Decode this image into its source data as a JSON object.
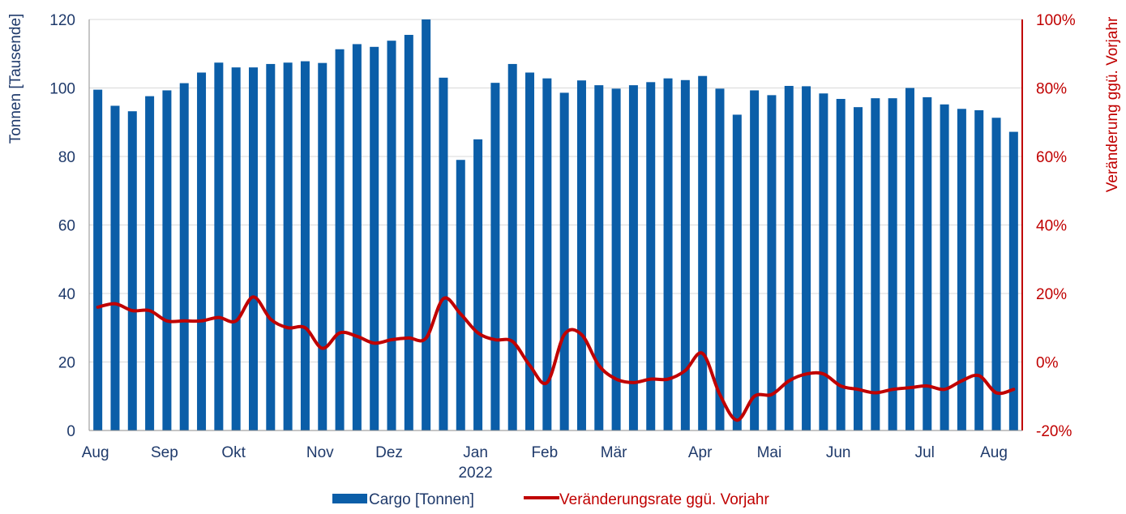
{
  "chart_data": {
    "type": "bar",
    "x_axis": {
      "month_labels": [
        "Aug",
        "Sep",
        "Okt",
        "Nov",
        "Dez",
        "Jan",
        "Feb",
        "Mär",
        "Apr",
        "Mai",
        "Jun",
        "Jul",
        "Aug"
      ],
      "year_label": "2022"
    },
    "y_left": {
      "label": "Tonnen [Tausende]",
      "ylim": [
        0,
        120
      ],
      "ticks": [
        "0",
        "20",
        "40",
        "60",
        "80",
        "100",
        "120"
      ]
    },
    "y_right": {
      "label": "Veränderung ggü. Vorjahr",
      "ylim": [
        -20,
        100
      ],
      "ticks": [
        "-20%",
        "0%",
        "20%",
        "40%",
        "60%",
        "80%",
        "100%"
      ]
    },
    "series": [
      {
        "name": "Cargo [Tonnen]",
        "kind": "bar",
        "color": "#0b5ea8",
        "values": [
          99.5,
          94.8,
          93.2,
          97.6,
          99.3,
          101.4,
          104.5,
          107.4,
          106.0,
          106.0,
          107.0,
          107.4,
          107.8,
          107.3,
          111.3,
          112.8,
          112.0,
          113.8,
          115.5,
          120.0,
          103.0,
          79.0,
          85.0,
          101.5,
          107.0,
          104.5,
          102.8,
          98.6,
          102.2,
          100.8,
          99.8,
          100.8,
          101.7,
          102.8,
          102.3,
          103.5,
          99.8,
          92.2,
          99.3,
          97.9,
          100.6,
          100.5,
          98.4,
          96.8,
          94.4,
          97.0,
          97.0,
          100.0,
          97.3,
          95.2,
          93.9,
          93.5,
          91.3,
          87.2
        ]
      },
      {
        "name": "Veränderungsrate ggü. Vorjahr",
        "kind": "line",
        "color": "#c00000",
        "values": [
          16,
          17,
          15,
          15,
          12,
          12,
          12,
          13,
          12,
          19,
          12.5,
          10,
          10,
          4,
          8.5,
          7.5,
          5.5,
          6.5,
          7,
          7,
          18.5,
          14,
          8.5,
          6.5,
          6,
          -1,
          -6,
          8,
          8,
          -1,
          -5,
          -6,
          -5,
          -5,
          -2.5,
          2.5,
          -9.5,
          -17,
          -10,
          -9.5,
          -5.5,
          -3.5,
          -3.5,
          -7,
          -8,
          -9,
          -8,
          -7.5,
          -7,
          -8,
          -5.5,
          -4,
          -9,
          -8
        ]
      }
    ]
  }
}
